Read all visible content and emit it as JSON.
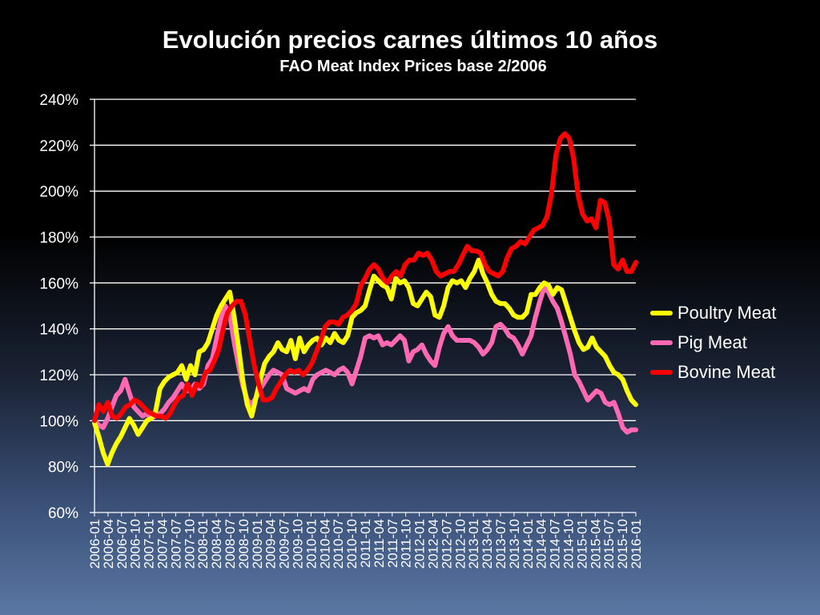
{
  "chart_data": {
    "type": "line",
    "title": "Evolución precios carnes últimos 10 años",
    "subtitle": "FAO Meat Index Prices base 2/2006",
    "ylim": [
      60,
      240
    ],
    "yticks": [
      "60%",
      "80%",
      "100%",
      "120%",
      "140%",
      "160%",
      "180%",
      "200%",
      "220%",
      "240%"
    ],
    "grid": true,
    "legend_position": "right",
    "x_tick_labels": [
      "2006-01",
      "2006-04",
      "2006-07",
      "2006-10",
      "2007-01",
      "2007-04",
      "2007-07",
      "2007-10",
      "2008-01",
      "2008-04",
      "2008-07",
      "2008-10",
      "2009-01",
      "2009-04",
      "2009-07",
      "2009-10",
      "2010-01",
      "2010-04",
      "2010-07",
      "2010-10",
      "2011-01",
      "2011-04",
      "2011-07",
      "2011-10",
      "2012-01",
      "2012-04",
      "2012-07",
      "2012-10",
      "2013-01",
      "2013-04",
      "2013-07",
      "2013-10",
      "2014-01",
      "2014-04",
      "2014-07",
      "2014-10",
      "2015-01",
      "2015-04",
      "2015-07",
      "2015-10",
      "2016-01"
    ],
    "series": [
      {
        "name": "Poultry Meat",
        "color": "#ffff00",
        "values": [
          99,
          93,
          86,
          81,
          86,
          90,
          93,
          97,
          101,
          98,
          94,
          97,
          100,
          101,
          104,
          114,
          117,
          119,
          120,
          121,
          124,
          118,
          124,
          120,
          130,
          131,
          134,
          140,
          146,
          150,
          153,
          156,
          145,
          132,
          117,
          107,
          102,
          110,
          118,
          125,
          128,
          130,
          134,
          131,
          130,
          135,
          127,
          136,
          130,
          133,
          135,
          136,
          133,
          136,
          134,
          138,
          135,
          134,
          137,
          145,
          147,
          148,
          150,
          157,
          163,
          161,
          159,
          158,
          153,
          162,
          160,
          161,
          158,
          151,
          150,
          153,
          156,
          154,
          146,
          145,
          150,
          158,
          161,
          160,
          161,
          158,
          162,
          165,
          170,
          164,
          160,
          155,
          152,
          151,
          151,
          149,
          146,
          145,
          145,
          147,
          155,
          155,
          158,
          160,
          159,
          155,
          158,
          157,
          151,
          145,
          139,
          134,
          131,
          132,
          136,
          132,
          130,
          128,
          124,
          121,
          120,
          118,
          113,
          109,
          107
        ]
      },
      {
        "name": "Pig Meat",
        "color": "#ff69b4",
        "values": [
          100,
          98,
          97,
          101,
          106,
          111,
          113,
          118,
          112,
          106,
          104,
          102,
          103,
          101,
          102,
          103,
          105,
          108,
          110,
          113,
          116,
          113,
          113,
          116,
          114,
          116,
          124,
          127,
          136,
          145,
          150,
          146,
          134,
          124,
          115,
          109,
          107,
          110,
          114,
          117,
          120,
          122,
          121,
          120,
          114,
          113,
          112,
          113,
          114,
          113,
          118,
          120,
          121,
          122,
          121,
          120,
          122,
          123,
          121,
          116,
          122,
          128,
          136,
          137,
          136,
          137,
          133,
          134,
          133,
          135,
          137,
          135,
          126,
          130,
          131,
          133,
          129,
          126,
          124,
          132,
          138,
          141,
          137,
          135,
          135,
          135,
          135,
          134,
          132,
          129,
          131,
          134,
          141,
          142,
          140,
          137,
          136,
          133,
          129,
          133,
          137,
          145,
          152,
          158,
          156,
          152,
          149,
          143,
          136,
          129,
          120,
          117,
          113,
          109,
          111,
          113,
          112,
          108,
          107,
          108,
          103,
          97,
          95,
          96,
          96
        ]
      },
      {
        "name": "Bovine Meat",
        "color": "#ff0000",
        "values": [
          100,
          107,
          104,
          108,
          102,
          101,
          103,
          106,
          107,
          109,
          108,
          106,
          104,
          103,
          102,
          102,
          101,
          103,
          107,
          110,
          111,
          116,
          111,
          116,
          115,
          121,
          122,
          126,
          131,
          140,
          147,
          150,
          152,
          152,
          146,
          135,
          124,
          116,
          109,
          109,
          110,
          114,
          117,
          120,
          122,
          121,
          122,
          120,
          122,
          125,
          130,
          135,
          141,
          143,
          143,
          142,
          145,
          146,
          148,
          151,
          159,
          162,
          166,
          168,
          166,
          162,
          160,
          163,
          165,
          163,
          168,
          170,
          170,
          173,
          172,
          173,
          170,
          165,
          163,
          164,
          165,
          165,
          168,
          172,
          176,
          174,
          174,
          173,
          168,
          165,
          164,
          163,
          165,
          171,
          175,
          176,
          178,
          177,
          180,
          183,
          184,
          185,
          189,
          199,
          216,
          223,
          225,
          223,
          214,
          198,
          190,
          187,
          188,
          184,
          196,
          195,
          187,
          168,
          166,
          170,
          165,
          165,
          169
        ]
      }
    ]
  }
}
